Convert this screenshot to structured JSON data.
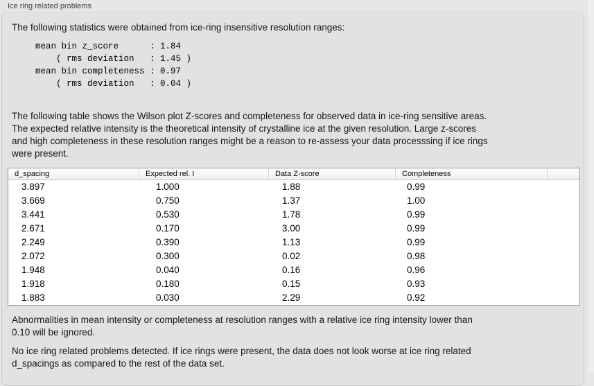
{
  "section": {
    "title": "Ice ring related problems"
  },
  "panel": {
    "intro": "The following statistics were obtained from ice-ring insensitive resolution ranges:",
    "stats_block": "mean bin z_score      : 1.84\n    ( rms deviation   : 1.45 )\nmean bin completeness : 0.97\n    ( rms deviation   : 0.04 )",
    "table_description": "The following table shows the Wilson plot Z-scores and completeness for observed data in ice-ring sensitive areas.\nThe expected relative intensity is the theoretical intensity of crystalline ice at the given resolution. Large z-scores\nand high completeness in these resolution ranges might be a reason to re-assess your data processsing if ice rings\nwere present.",
    "ignore_note": "Abnormalities in mean intensity or completeness at resolution ranges with a relative ice ring intensity lower than\n0.10 will be ignored.",
    "conclusion": "No ice ring related problems detected. If ice rings were present, the data does not look worse at ice ring related\nd_spacings as compared to the rest of the data set."
  },
  "table": {
    "columns": [
      "d_spacing",
      "Expected rel. I",
      "Data Z-score",
      "Completeness"
    ],
    "rows": [
      [
        "3.897",
        "1.000",
        "1.88",
        "0.99"
      ],
      [
        "3.669",
        "0.750",
        "1.37",
        "1.00"
      ],
      [
        "3.441",
        "0.530",
        "1.78",
        "0.99"
      ],
      [
        "2.671",
        "0.170",
        "3.00",
        "0.99"
      ],
      [
        "2.249",
        "0.390",
        "1.13",
        "0.99"
      ],
      [
        "2.072",
        "0.300",
        "0.02",
        "0.98"
      ],
      [
        "1.948",
        "0.040",
        "0.16",
        "0.96"
      ],
      [
        "1.918",
        "0.180",
        "0.15",
        "0.93"
      ],
      [
        "1.883",
        "0.030",
        "2.29",
        "0.92"
      ]
    ]
  },
  "colors": {
    "page_background": "#e7e7e7",
    "panel_background": "#e2e2e2",
    "panel_border": "#c7c7c7",
    "table_border": "#949494",
    "table_background": "#ffffff"
  }
}
